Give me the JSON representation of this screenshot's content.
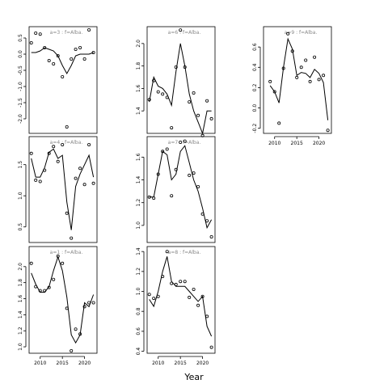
{
  "chart_data": {
    "type": "scatter",
    "xlabel": "Year",
    "x_tick_labels": [
      "2010",
      "2015",
      "2020"
    ],
    "panels": [
      {
        "label": "a=3  :  f=Alba.",
        "y_tick_labels": [
          "-2.0",
          "-1.5",
          "-1.0",
          "-0.5",
          "0.0",
          "0.5"
        ],
        "ylim": [
          -2.45,
          0.85
        ],
        "yticks": [
          -2.0,
          -1.5,
          -1.0,
          -0.5,
          0.0,
          0.5
        ],
        "x_axis": false,
        "points_x": [
          2008,
          2009,
          2010,
          2011,
          2012,
          2013,
          2014,
          2015,
          2016,
          2017,
          2018,
          2019,
          2020,
          2021,
          2022
        ],
        "points_y": [
          0.35,
          0.65,
          0.62,
          0.2,
          -0.2,
          -0.3,
          -0.05,
          -0.7,
          -2.25,
          -0.15,
          0.15,
          0.2,
          -0.15,
          0.75,
          0.05
        ],
        "fit_x": [
          2008,
          2009,
          2010,
          2011,
          2012,
          2013,
          2014,
          2015,
          2016,
          2017,
          2018,
          2019,
          2020,
          2021,
          2022
        ],
        "fit_y": [
          0.05,
          0.05,
          0.1,
          0.2,
          0.15,
          0.1,
          -0.05,
          -0.35,
          -0.6,
          -0.35,
          -0.05,
          0.0,
          0.0,
          0.0,
          0.05
        ]
      },
      {
        "label": "a=6  :  f=Alba.",
        "y_tick_labels": [
          "1.4",
          "1.6",
          "1.8",
          "2.0"
        ],
        "ylim": [
          1.2,
          2.15
        ],
        "yticks": [
          1.4,
          1.6,
          1.8,
          2.0
        ],
        "x_axis": false,
        "points_x": [
          2008,
          2009,
          2010,
          2011,
          2012,
          2013,
          2014,
          2015,
          2016,
          2017,
          2018,
          2019,
          2020,
          2021,
          2022
        ],
        "points_y": [
          1.5,
          1.67,
          1.57,
          1.55,
          1.52,
          1.25,
          1.79,
          2.12,
          1.79,
          1.48,
          1.56,
          1.36,
          1.18,
          1.49,
          1.33
        ],
        "fit_x": [
          2008,
          2009,
          2010,
          2011,
          2012,
          2013,
          2014,
          2015,
          2016,
          2017,
          2018,
          2019,
          2020,
          2021,
          2022
        ],
        "fit_y": [
          1.48,
          1.7,
          1.62,
          1.6,
          1.55,
          1.45,
          1.75,
          2.0,
          1.8,
          1.55,
          1.4,
          1.3,
          1.2,
          1.4,
          1.4
        ]
      },
      {
        "label": "a=9  :  f=Alba.",
        "y_tick_labels": [
          "-0.2",
          "0.0",
          "0.2",
          "0.4",
          "0.6"
        ],
        "ylim": [
          -0.25,
          0.8
        ],
        "yticks": [
          -0.2,
          0.0,
          0.2,
          0.4,
          0.6
        ],
        "x_axis": true,
        "points_x": [
          2009,
          2010,
          2011,
          2012,
          2013,
          2014,
          2015,
          2016,
          2017,
          2018,
          2019,
          2020,
          2021,
          2022
        ],
        "points_y": [
          0.26,
          0.16,
          -0.15,
          0.39,
          0.73,
          0.56,
          0.3,
          0.4,
          0.47,
          0.26,
          0.5,
          0.28,
          0.32,
          -0.22
        ],
        "fit_x": [
          2009,
          2010,
          2011,
          2012,
          2013,
          2014,
          2015,
          2016,
          2017,
          2018,
          2019,
          2020,
          2021,
          2022
        ],
        "fit_y": [
          0.22,
          0.16,
          0.05,
          0.4,
          0.68,
          0.58,
          0.32,
          0.35,
          0.34,
          0.3,
          0.38,
          0.34,
          0.25,
          -0.12
        ]
      },
      {
        "label": "a=4  :  f=Alba.",
        "y_tick_labels": [
          "0.5",
          "1.0",
          "1.5"
        ],
        "ylim": [
          0.25,
          1.95
        ],
        "yticks": [
          0.5,
          1.0,
          1.5
        ],
        "x_axis": false,
        "points_x": [
          2008,
          2009,
          2010,
          2011,
          2012,
          2013,
          2014,
          2015,
          2016,
          2017,
          2018,
          2019,
          2020,
          2021,
          2022
        ],
        "points_y": [
          1.68,
          1.25,
          1.23,
          1.41,
          1.68,
          1.79,
          1.55,
          1.82,
          0.72,
          0.32,
          1.28,
          1.44,
          1.18,
          1.82,
          1.2
        ],
        "fit_x": [
          2008,
          2009,
          2010,
          2011,
          2012,
          2013,
          2014,
          2015,
          2016,
          2017,
          2018,
          2019,
          2020,
          2021,
          2022
        ],
        "fit_y": [
          1.6,
          1.3,
          1.3,
          1.45,
          1.7,
          1.75,
          1.6,
          1.65,
          0.9,
          0.45,
          1.15,
          1.35,
          1.5,
          1.65,
          1.3
        ]
      },
      {
        "label": "a=7  :  f=Alba.",
        "y_tick_labels": [
          "1.0",
          "1.2",
          "1.4",
          "1.6"
        ],
        "ylim": [
          0.85,
          1.78
        ],
        "yticks": [
          1.0,
          1.2,
          1.4,
          1.6
        ],
        "x_axis": false,
        "points_x": [
          2008,
          2009,
          2010,
          2011,
          2012,
          2013,
          2014,
          2015,
          2016,
          2017,
          2018,
          2019,
          2020,
          2021,
          2022
        ],
        "points_y": [
          1.25,
          1.24,
          1.45,
          1.65,
          1.67,
          1.26,
          1.49,
          1.73,
          1.74,
          1.44,
          1.46,
          1.34,
          1.1,
          1.04,
          0.9
        ],
        "fit_x": [
          2008,
          2009,
          2010,
          2011,
          2012,
          2013,
          2014,
          2015,
          2016,
          2017,
          2018,
          2019,
          2020,
          2021,
          2022
        ],
        "fit_y": [
          1.25,
          1.25,
          1.45,
          1.65,
          1.62,
          1.4,
          1.45,
          1.65,
          1.7,
          1.55,
          1.4,
          1.3,
          1.15,
          0.98,
          1.05
        ]
      },
      {
        "label": "a=1  :  f=Alba.",
        "y_tick_labels": [
          "1.0",
          "1.2",
          "1.4",
          "1.6",
          "1.8",
          "2.0"
        ],
        "ylim": [
          0.92,
          2.25
        ],
        "yticks": [
          1.0,
          1.2,
          1.4,
          1.6,
          1.8,
          2.0
        ],
        "x_axis": true,
        "points_x": [
          2008,
          2009,
          2010,
          2011,
          2012,
          2013,
          2014,
          2015,
          2016,
          2017,
          2018,
          2019,
          2020,
          2021,
          2022
        ],
        "points_y": [
          2.04,
          1.75,
          1.7,
          1.7,
          1.74,
          1.84,
          2.13,
          2.04,
          1.48,
          0.95,
          1.22,
          1.16,
          1.5,
          1.55,
          1.55
        ],
        "fit_x": [
          2008,
          2009,
          2010,
          2011,
          2012,
          2013,
          2014,
          2015,
          2016,
          2017,
          2018,
          2019,
          2020,
          2021,
          2022
        ],
        "fit_y": [
          1.92,
          1.78,
          1.68,
          1.68,
          1.75,
          1.95,
          2.12,
          1.95,
          1.62,
          1.15,
          1.05,
          1.15,
          1.55,
          1.5,
          1.65
        ]
      },
      {
        "label": "a=8  :  f=Alba.",
        "y_tick_labels": [
          "0.4",
          "0.6",
          "0.8",
          "1.0",
          "1.2",
          "1.4"
        ],
        "ylim": [
          0.38,
          1.45
        ],
        "yticks": [
          0.4,
          0.6,
          0.8,
          1.0,
          1.2,
          1.4
        ],
        "x_axis": true,
        "points_x": [
          2008,
          2009,
          2010,
          2011,
          2012,
          2013,
          2014,
          2015,
          2016,
          2017,
          2018,
          2019,
          2020,
          2021,
          2022
        ],
        "points_y": [
          0.97,
          0.93,
          0.95,
          1.15,
          1.4,
          1.08,
          1.07,
          1.1,
          1.1,
          0.94,
          1.02,
          0.86,
          0.95,
          0.75,
          0.44
        ],
        "fit_x": [
          2008,
          2009,
          2010,
          2011,
          2012,
          2013,
          2014,
          2015,
          2016,
          2017,
          2018,
          2019,
          2020,
          2021,
          2022
        ],
        "fit_y": [
          0.92,
          0.85,
          1.0,
          1.2,
          1.35,
          1.1,
          1.05,
          1.05,
          1.05,
          1.0,
          0.95,
          0.9,
          0.95,
          0.65,
          0.55
        ]
      }
    ]
  }
}
